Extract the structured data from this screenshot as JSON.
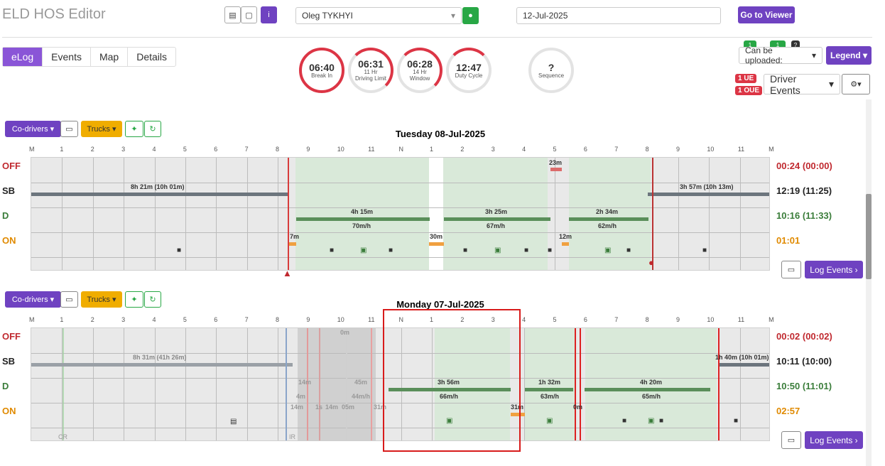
{
  "app": {
    "title": "ELD HOS Editor"
  },
  "header": {
    "driver": "Oleg TYKHYI",
    "date": "12-Jul-2025",
    "viewer_btn": "Go to Viewer"
  },
  "tabs": [
    "eLog",
    "Events",
    "Map",
    "Details"
  ],
  "dials": [
    {
      "value": "06:40",
      "line1": "Break In",
      "line2": ""
    },
    {
      "value": "06:31",
      "line1": "11 Hr",
      "line2": "Driving Limit"
    },
    {
      "value": "06:28",
      "line1": "14 Hr",
      "line2": "Window"
    },
    {
      "value": "12:47",
      "line1": "Duty Cycle",
      "line2": ""
    },
    {
      "value": "?",
      "line1": "Sequence",
      "line2": ""
    }
  ],
  "right_panel": {
    "upload": "Can be uploaded:",
    "legend": "Legend",
    "ue": "1 UE",
    "oue": "1 OUE",
    "driver_events": "Driver Events",
    "mini1": "1",
    "mini2": "1",
    "mini3": "?"
  },
  "buttons": {
    "codrivers": "Co-drivers",
    "trucks": "Trucks",
    "log_events": "Log Events"
  },
  "hours": [
    "M",
    "1",
    "2",
    "3",
    "4",
    "5",
    "6",
    "7",
    "8",
    "9",
    "10",
    "11",
    "N",
    "1",
    "2",
    "3",
    "4",
    "5",
    "6",
    "7",
    "8",
    "9",
    "10",
    "11",
    "M"
  ],
  "statuses": [
    "OFF",
    "SB",
    "D",
    "ON"
  ],
  "day1": {
    "title": "Tuesday 08-Jul-2025",
    "totals": [
      "00:24 (00:00)",
      "12:19 (11:25)",
      "10:16 (11:33)",
      "01:01"
    ],
    "labels": {
      "sb1": "8h 21m (10h 01m)",
      "sb2": "3h 57m (10h 13m)",
      "d1": "4h 15m",
      "d1s": "70m/h",
      "d2": "3h 25m",
      "d2s": "67m/h",
      "d3": "2h 34m",
      "d3s": "62m/h",
      "off1": "23m",
      "on1": "7m",
      "on2": "30m",
      "on3": "12m"
    }
  },
  "day2": {
    "title": "Monday 07-Jul-2025",
    "totals": [
      "00:02 (00:02)",
      "10:11 (10:00)",
      "10:50 (11:01)",
      "02:57"
    ],
    "labels": {
      "sb1": "8h 31m (41h 26m)",
      "sb2": "1h 40m (10h 01m)",
      "d1": "3h 56m",
      "d1s": "66m/h",
      "d2": "1h 32m",
      "d2s": "63m/h",
      "d3": "4h 20m",
      "d3s": "65m/h",
      "on1": "31m",
      "s14": "14m",
      "s14b": "14m",
      "s4": "4m",
      "s1": "1s",
      "s14m": "14m",
      "s05m": "05m",
      "s45": "45m",
      "s44": "44m/h",
      "s0": "0m",
      "s31": "31m",
      "s0m2": "0m",
      "cr": "CR",
      "ir": "IR"
    }
  }
}
